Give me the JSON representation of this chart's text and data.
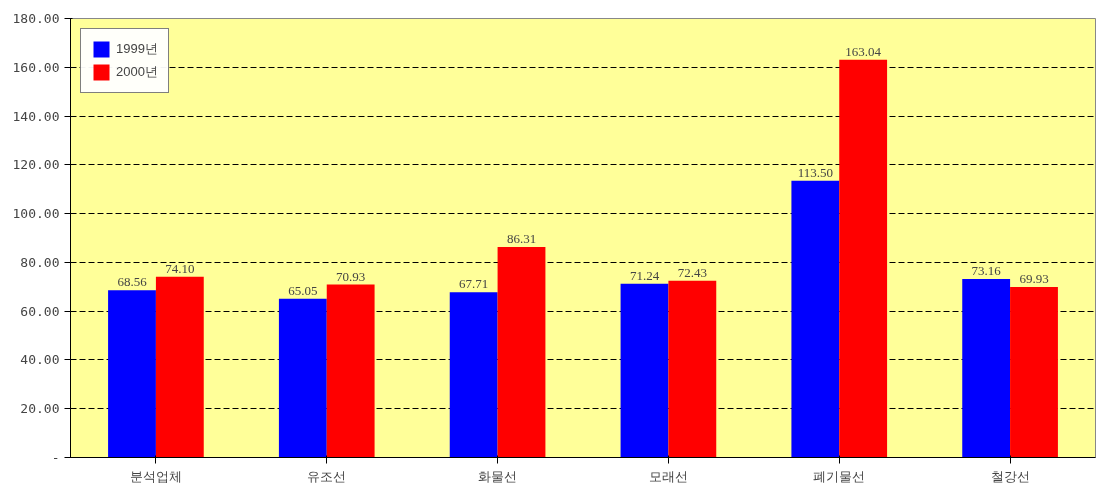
{
  "chart_data": {
    "type": "bar",
    "categories": [
      "분석업체",
      "유조선",
      "화물선",
      "모래선",
      "폐기물선",
      "철강선"
    ],
    "series": [
      {
        "name": "1999년",
        "color": "#0000ff",
        "values": [
          68.56,
          65.05,
          67.71,
          71.24,
          113.5,
          73.16
        ],
        "value_labels": [
          "68.56",
          "65.05",
          "67.71",
          "71.24",
          "113.50",
          "73.16"
        ]
      },
      {
        "name": "2000년",
        "color": "#ff0000",
        "values": [
          74.1,
          70.93,
          86.31,
          72.43,
          163.04,
          69.93
        ],
        "value_labels": [
          "74.10",
          "70.93",
          "86.31",
          "72.43",
          "163.04",
          "69.93"
        ]
      }
    ],
    "ylim": [
      0,
      180
    ],
    "yticks": [
      {
        "value": 0,
        "label": "-"
      },
      {
        "value": 20,
        "label": "20.00"
      },
      {
        "value": 40,
        "label": "40.00"
      },
      {
        "value": 60,
        "label": "60.00"
      },
      {
        "value": 80,
        "label": "80.00"
      },
      {
        "value": 100,
        "label": "100.00"
      },
      {
        "value": 120,
        "label": "120.00"
      },
      {
        "value": 140,
        "label": "140.00"
      },
      {
        "value": 160,
        "label": "160.00"
      },
      {
        "value": 180,
        "label": "180.00"
      }
    ],
    "grid": "y",
    "legend": "top left"
  }
}
